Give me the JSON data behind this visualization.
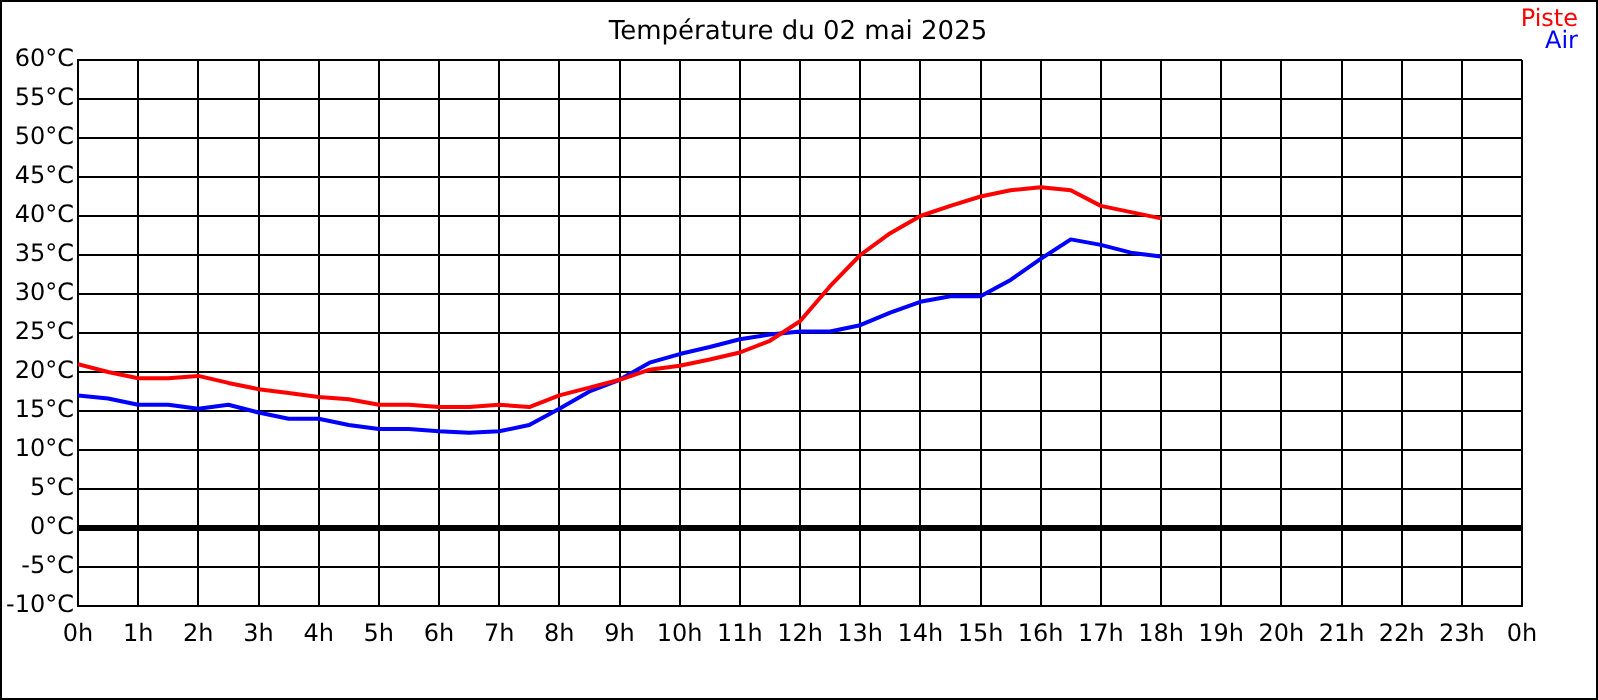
{
  "chart_data": {
    "type": "line",
    "title": "Température du 02 mai 2025",
    "x": [
      "2025-05-02T00:00",
      "2025-05-02T00:30",
      "2025-05-02T01:00",
      "2025-05-02T01:30",
      "2025-05-02T02:00",
      "2025-05-02T02:30",
      "2025-05-02T03:00",
      "2025-05-02T03:30",
      "2025-05-02T04:00",
      "2025-05-02T04:30",
      "2025-05-02T05:00",
      "2025-05-02T05:30",
      "2025-05-02T06:00",
      "2025-05-02T06:30",
      "2025-05-02T07:00",
      "2025-05-02T07:30",
      "2025-05-02T08:00",
      "2025-05-02T08:30",
      "2025-05-02T09:00",
      "2025-05-02T09:30",
      "2025-05-02T10:00",
      "2025-05-02T10:30",
      "2025-05-02T11:00",
      "2025-05-02T11:30",
      "2025-05-02T12:00",
      "2025-05-02T12:30",
      "2025-05-02T13:00",
      "2025-05-02T13:30",
      "2025-05-02T14:00",
      "2025-05-02T14:30",
      "2025-05-02T15:00",
      "2025-05-02T15:30",
      "2025-05-02T16:00",
      "2025-05-02T16:30",
      "2025-05-02T17:00",
      "2025-05-02T17:30",
      "2025-05-02T18:00"
    ],
    "series": [
      {
        "name": "Piste",
        "color": "#ff0000",
        "values": [
          21,
          20,
          19.2,
          19.2,
          19.5,
          18.6,
          17.8,
          17.3,
          16.8,
          16.5,
          15.8,
          15.8,
          15.5,
          15.5,
          15.8,
          15.5,
          17,
          18,
          19,
          20.3,
          20.8,
          21.6,
          22.5,
          24,
          26.5,
          31,
          35,
          37.8,
          40,
          41.3,
          42.5,
          43.3,
          43.7,
          43.3,
          41.3,
          40.5,
          39.7
        ]
      },
      {
        "name": "Air",
        "color": "#0000ff",
        "values": [
          17,
          16.6,
          15.8,
          15.8,
          15.3,
          15.8,
          14.8,
          14,
          14,
          13.2,
          12.7,
          12.7,
          12.4,
          12.2,
          12.4,
          13.2,
          15.3,
          17.5,
          19,
          21.2,
          22.3,
          23.2,
          24.2,
          24.8,
          25.2,
          25.2,
          26,
          27.6,
          29,
          29.7,
          29.7,
          31.8,
          34.5,
          37,
          36.3,
          35.3,
          34.8
        ]
      }
    ],
    "xlim": [
      "2025-05-02T00:00",
      "2025-05-03T00:00"
    ],
    "xticks": [
      {
        "value": "2025-05-02T00:00",
        "label": "0h"
      },
      {
        "value": "2025-05-02T01:00",
        "label": "1h"
      },
      {
        "value": "2025-05-02T02:00",
        "label": "2h"
      },
      {
        "value": "2025-05-02T03:00",
        "label": "3h"
      },
      {
        "value": "2025-05-02T04:00",
        "label": "4h"
      },
      {
        "value": "2025-05-02T05:00",
        "label": "5h"
      },
      {
        "value": "2025-05-02T06:00",
        "label": "6h"
      },
      {
        "value": "2025-05-02T07:00",
        "label": "7h"
      },
      {
        "value": "2025-05-02T08:00",
        "label": "8h"
      },
      {
        "value": "2025-05-02T09:00",
        "label": "9h"
      },
      {
        "value": "2025-05-02T10:00",
        "label": "10h"
      },
      {
        "value": "2025-05-02T11:00",
        "label": "11h"
      },
      {
        "value": "2025-05-02T12:00",
        "label": "12h"
      },
      {
        "value": "2025-05-02T13:00",
        "label": "13h"
      },
      {
        "value": "2025-05-02T14:00",
        "label": "14h"
      },
      {
        "value": "2025-05-02T15:00",
        "label": "15h"
      },
      {
        "value": "2025-05-02T16:00",
        "label": "16h"
      },
      {
        "value": "2025-05-02T17:00",
        "label": "17h"
      },
      {
        "value": "2025-05-02T18:00",
        "label": "18h"
      },
      {
        "value": "2025-05-02T19:00",
        "label": "19h"
      },
      {
        "value": "2025-05-02T20:00",
        "label": "20h"
      },
      {
        "value": "2025-05-02T21:00",
        "label": "21h"
      },
      {
        "value": "2025-05-02T22:00",
        "label": "22h"
      },
      {
        "value": "2025-05-02T23:00",
        "label": "23h"
      },
      {
        "value": "2025-05-03T00:00",
        "label": "0h"
      }
    ],
    "ylim": [
      -10,
      60
    ],
    "yticks": [
      {
        "value": -10,
        "label": "-10°C"
      },
      {
        "value": -5,
        "label": "-5°C"
      },
      {
        "value": 0,
        "label": "0°C"
      },
      {
        "value": 5,
        "label": "5°C"
      },
      {
        "value": 10,
        "label": "10°C"
      },
      {
        "value": 15,
        "label": "15°C"
      },
      {
        "value": 20,
        "label": "20°C"
      },
      {
        "value": 25,
        "label": "25°C"
      },
      {
        "value": 30,
        "label": "30°C"
      },
      {
        "value": 35,
        "label": "35°C"
      },
      {
        "value": 40,
        "label": "40°C"
      },
      {
        "value": 45,
        "label": "45°C"
      },
      {
        "value": 50,
        "label": "50°C"
      },
      {
        "value": 55,
        "label": "55°C"
      },
      {
        "value": 60,
        "label": "60°C"
      }
    ],
    "ref_lines": [
      {
        "axis": "y",
        "value": 0,
        "color": "#000000"
      }
    ],
    "grid": true,
    "legend": "top right",
    "marker": "none",
    "line_style": "solid"
  }
}
